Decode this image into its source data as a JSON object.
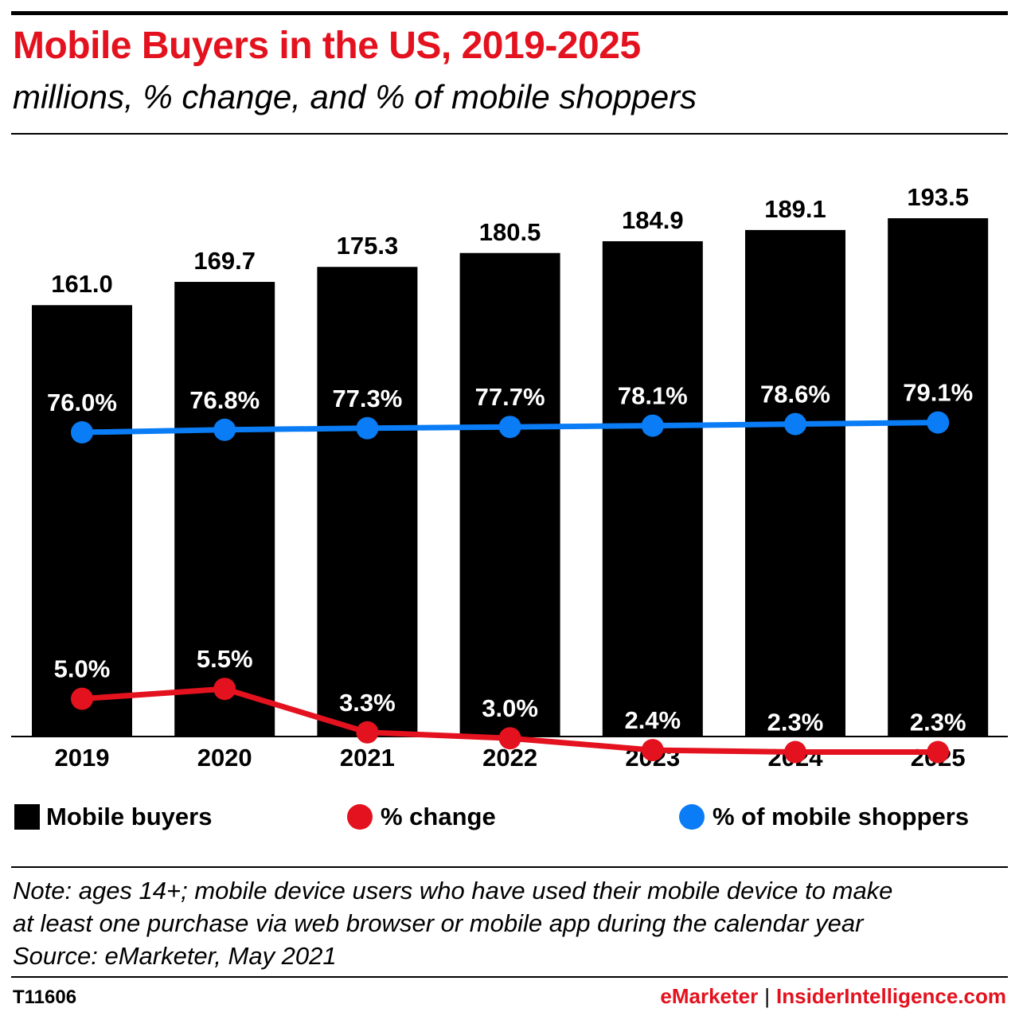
{
  "header": {
    "title": "Mobile Buyers in the US, 2019-2025",
    "subtitle": "millions, % change, and % of mobile shoppers"
  },
  "chart_data": {
    "type": "bar",
    "categories": [
      "2019",
      "2020",
      "2021",
      "2022",
      "2023",
      "2024",
      "2025"
    ],
    "series": [
      {
        "name": "Mobile buyers",
        "type": "bar",
        "color": "#000000",
        "values": [
          161.0,
          169.7,
          175.3,
          180.5,
          184.9,
          189.1,
          193.5
        ],
        "labels": [
          "161.0",
          "169.7",
          "175.3",
          "180.5",
          "184.9",
          "189.1",
          "193.5"
        ]
      },
      {
        "name": "% change",
        "type": "line",
        "color": "#e3121e",
        "values": [
          5.0,
          5.5,
          3.3,
          3.0,
          2.4,
          2.3,
          2.3
        ],
        "labels": [
          "5.0%",
          "5.5%",
          "3.3%",
          "3.0%",
          "2.4%",
          "2.3%",
          "2.3%"
        ]
      },
      {
        "name": "% of mobile shoppers",
        "type": "line",
        "color": "#0a7cf5",
        "values": [
          76.0,
          76.8,
          77.3,
          77.7,
          78.1,
          78.6,
          79.1
        ],
        "labels": [
          "76.0%",
          "76.8%",
          "77.3%",
          "77.7%",
          "78.1%",
          "78.6%",
          "79.1%"
        ]
      }
    ],
    "legend_position": "bottom",
    "grid": false
  },
  "legend": {
    "bars_label": "Mobile buyers",
    "change_label": "% change",
    "share_label": "% of mobile shoppers"
  },
  "note": {
    "line1": "Note: ages 14+; mobile device users who have used their mobile device to make",
    "line2": "at least one purchase via web browser or mobile app during the calendar year",
    "source": "Source: eMarketer, May 2021"
  },
  "footer": {
    "chart_id": "T11606",
    "brand1": "eMarketer",
    "separator": "|",
    "brand2": "InsiderIntelligence.com"
  }
}
